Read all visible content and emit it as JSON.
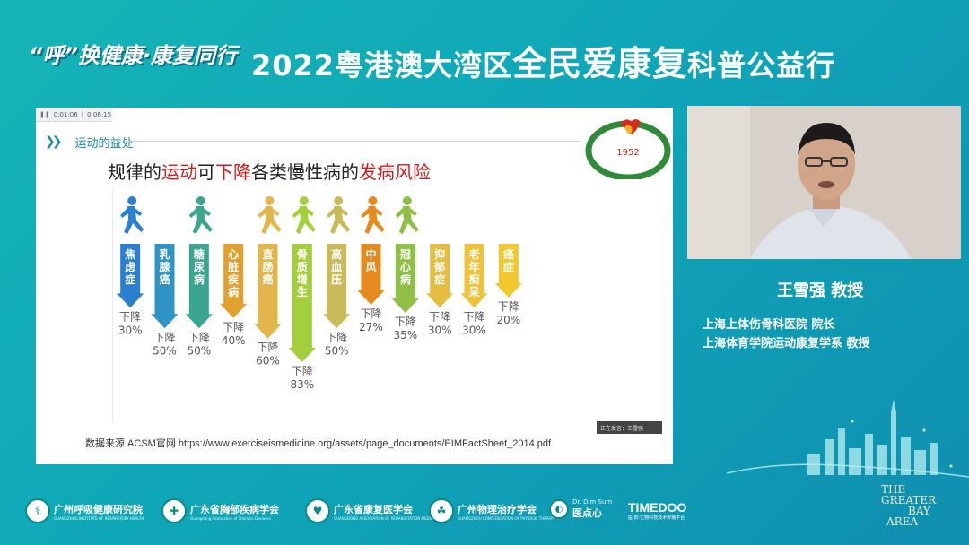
{
  "banner": {
    "left_slogan": "“呼”换健康·康复同行",
    "title_pre": "2022粤港澳大湾区",
    "title_hl": "全民爱康复",
    "title_post": "科普公益行"
  },
  "player": {
    "time_current": "0:01:06",
    "time_total": "0:06:15"
  },
  "slide": {
    "section_title": "运动的益处",
    "heading": [
      {
        "text": "规律的",
        "red": false
      },
      {
        "text": "运动",
        "red": true
      },
      {
        "text": "可",
        "red": false
      },
      {
        "text": "下降",
        "red": true
      },
      {
        "text": "各类慢性病的",
        "red": false
      },
      {
        "text": "发病风险",
        "red": true
      }
    ],
    "logo_year": "1952",
    "source": "数据来源 ACSM官网 https://www.exerciseismedicine.org/assets/page_documents/EIMFactSheet_2014.pdf",
    "name_tag": "正在发言：王雪强"
  },
  "chart_data": {
    "type": "bar",
    "title": "规律的运动可下降各类慢性病的发病风险",
    "value_prefix": "下降",
    "categories": [
      "焦虑症",
      "乳腺癌",
      "糖尿病",
      "心脏疾病",
      "直肠癌",
      "骨质增生",
      "高血压",
      "中风",
      "冠心病",
      "抑郁症",
      "老年痴呆",
      "癌症"
    ],
    "values": [
      30,
      50,
      50,
      40,
      60,
      83,
      50,
      27,
      35,
      30,
      30,
      20
    ],
    "colors": [
      "#2a7fd0",
      "#2f93c6",
      "#3aa68f",
      "#e0a12e",
      "#e2b64a",
      "#a3cf3c",
      "#c9bb5a",
      "#e58a1e",
      "#8fbf45",
      "#e5bd40",
      "#f0c23a",
      "#f2c82e"
    ],
    "runners": [
      0,
      2,
      4,
      5,
      6,
      7,
      8
    ],
    "unit": "%"
  },
  "speaker": {
    "name": "王雪强 教授",
    "affiliation_1": "上海上体伤骨科医院 院长",
    "affiliation_2": "上海体育学院运动康复学系 教授"
  },
  "footer": {
    "orgs": [
      {
        "name": "广州呼吸健康研究院",
        "sub": "GUANGZHOU INSTITUTE OF RESPIRATORY HEALTH"
      },
      {
        "name": "广东省胸部疾病学会",
        "sub": "Guangdong Association of Thoracic Diseases"
      },
      {
        "name": "广东省康复医学会",
        "sub": "GUANGDONG ASSOCIATION OF REHABILITATION MEDICINE"
      },
      {
        "name": "广州物理治疗学会",
        "sub": "GUANGZHOU CONFEDERATION OF PHYSICAL THERAPY"
      }
    ],
    "dimsum_name": "医点心",
    "dimsum_en": "Dr. Dim Sum",
    "timedoo": "TIMEDOO",
    "timedoo_sub": "医·药·生物科技技术传播平台",
    "gba": [
      "THE",
      "GREATER",
      "BAY",
      "AREA"
    ]
  }
}
